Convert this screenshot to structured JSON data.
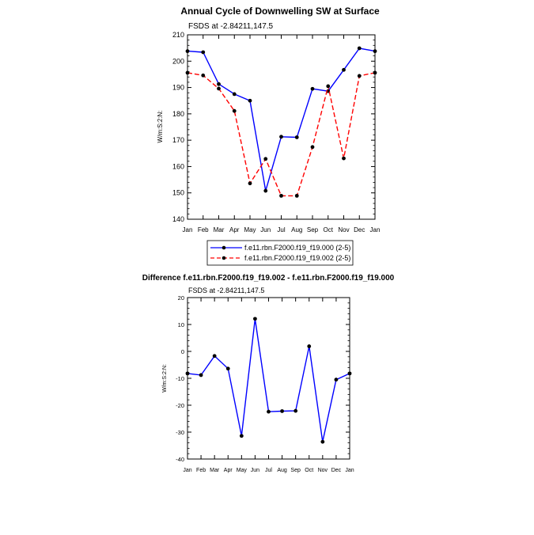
{
  "chart_data": [
    {
      "type": "line",
      "title": "Annual Cycle of Downwelling SW at Surface",
      "subtitle": "FSDS at -2.84211,147.5",
      "ylabel": "W/m:S:2:N:",
      "ylim": [
        140,
        210
      ],
      "yticks": [
        "140",
        "150",
        "160",
        "170",
        "180",
        "190",
        "200",
        "210"
      ],
      "categories": [
        "Jan",
        "Feb",
        "Mar",
        "Apr",
        "May",
        "Jun",
        "Jul",
        "Aug",
        "Sep",
        "Oct",
        "Nov",
        "Dec",
        "Jan"
      ],
      "series": [
        {
          "name": "f.e11.rbn.F2000.f19_f19.000 (2-5)",
          "color": "#0000ff",
          "dash": "solid",
          "values": [
            203.8,
            203.4,
            191.3,
            187.5,
            185.0,
            150.8,
            171.3,
            171.1,
            189.5,
            188.6,
            196.7,
            204.9,
            203.8
          ]
        },
        {
          "name": "f.e11.rbn.F2000.f19_f19.002 (2-5)",
          "color": "#ff0000",
          "dash": "dashed",
          "values": [
            195.6,
            194.6,
            189.6,
            181.1,
            153.6,
            162.9,
            148.9,
            148.9,
            167.4,
            190.5,
            163.1,
            194.4,
            195.6
          ]
        }
      ],
      "legend": "below",
      "grid": false
    },
    {
      "type": "line",
      "title": "Difference f.e11.rbn.F2000.f19_f19.002 - f.e11.rbn.F2000.f19_f19.000",
      "subtitle": "FSDS at -2.84211,147.5",
      "ylabel": "W/m:S:2:N:",
      "ylim": [
        -40,
        20
      ],
      "yticks": [
        "-40",
        "-30",
        "-20",
        "-10",
        "0",
        "10",
        "20"
      ],
      "categories": [
        "Jan",
        "Feb",
        "Mar",
        "Apr",
        "May",
        "Jun",
        "Jul",
        "Aug",
        "Sep",
        "Oct",
        "Nov",
        "Dec",
        "Jan"
      ],
      "series": [
        {
          "color": "#0000ff",
          "dash": "solid",
          "values": [
            -8.2,
            -8.8,
            -1.7,
            -6.4,
            -31.4,
            12.1,
            -22.4,
            -22.2,
            -22.1,
            1.9,
            -33.6,
            -10.5,
            -8.2
          ]
        }
      ],
      "grid": false
    }
  ]
}
